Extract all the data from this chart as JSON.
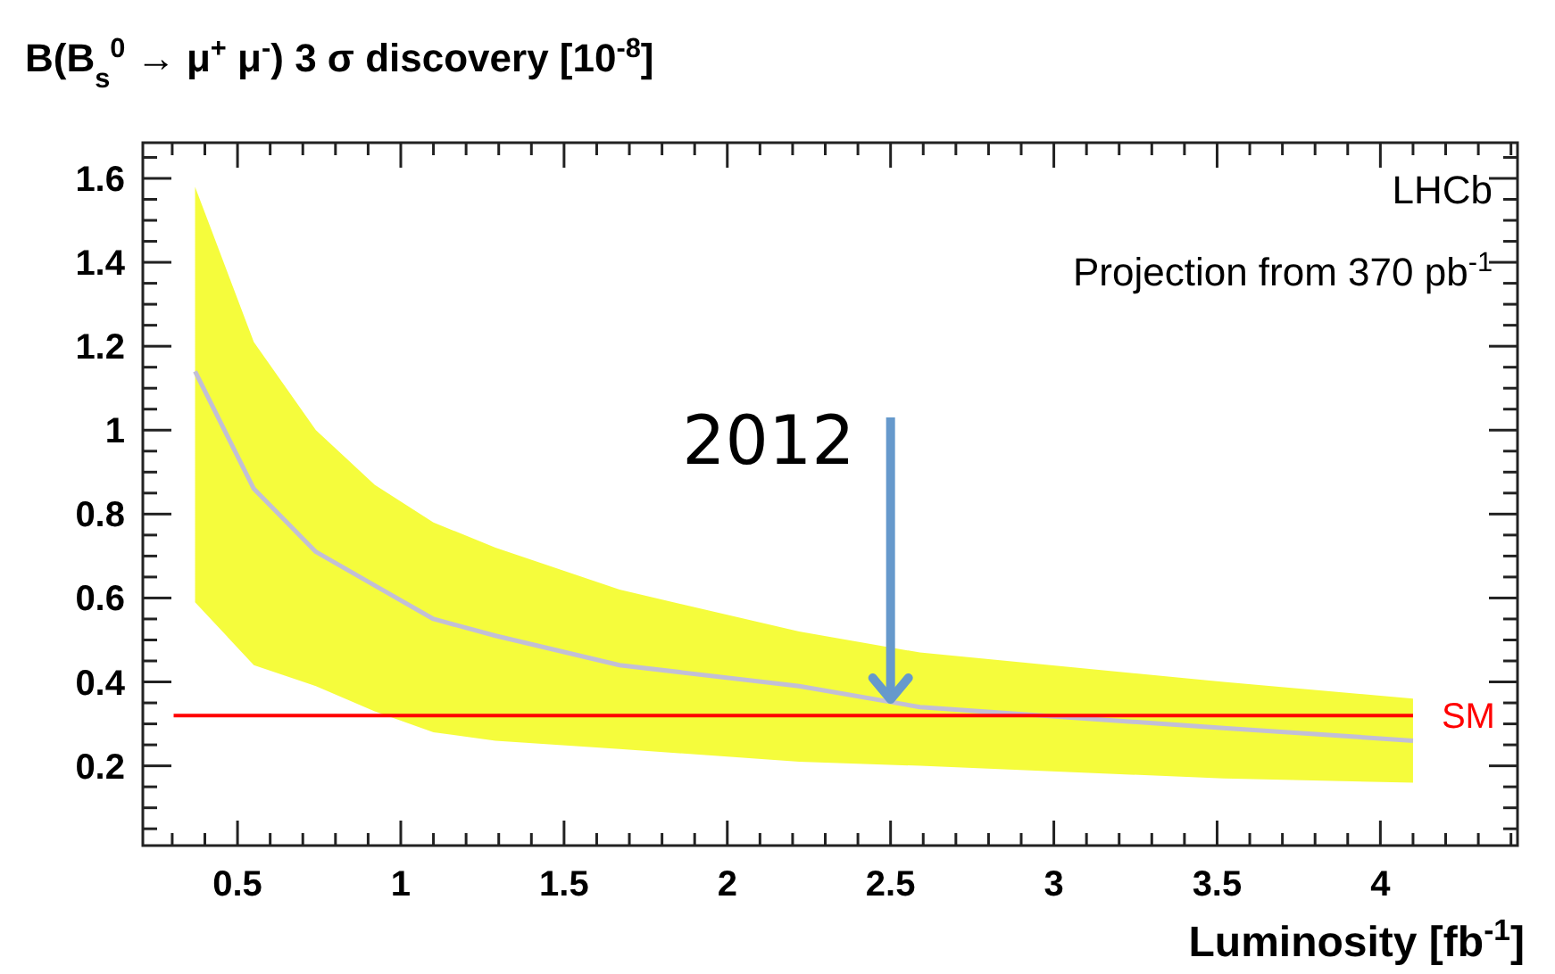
{
  "chart_data": {
    "type": "line",
    "title": "B(B$_{s}$$^{0}$ → μ$^{+}$ μ$^{-}$) 3 σ discovery [10$^{-8}$]",
    "xlabel": "Luminosity [fb$^{-1}$]",
    "x": [
      0.37,
      0.55,
      0.74,
      0.92,
      1.1,
      1.29,
      1.67,
      2.22,
      2.59,
      3.52,
      4.1
    ],
    "series": [
      {
        "color": "#c2bfd6",
        "colors": [
          "#f5fc3c",
          "#f5fc3c",
          "#f5fc3c",
          "#f5fc3c",
          "#f5fc3c",
          "#f5fc3c",
          "#f5fc3c",
          "#f5fc3c",
          "#f5fc3c",
          "#f5fc3c",
          "#f5fc3c"
        ],
        "values": [
          1.14,
          0.86,
          0.71,
          0.63,
          0.55,
          0.51,
          0.44,
          0.39,
          0.34,
          0.29,
          0.26
        ],
        "upper": [
          1.58,
          1.21,
          1.0,
          0.87,
          0.78,
          0.72,
          0.62,
          0.52,
          0.47,
          0.4,
          0.36
        ],
        "lower": [
          0.59,
          0.44,
          0.39,
          0.33,
          0.28,
          0.26,
          0.24,
          0.21,
          0.2,
          0.17,
          0.16
        ]
      }
    ],
    "ref_lines": [
      {
        "axis": "y",
        "value": 0.32,
        "label": "SM",
        "color": "#ff0000"
      }
    ],
    "annotations": [
      "LHCb",
      "Projection from 370 pb$^{-1}$",
      {
        "text": "2012",
        "x": 2.5,
        "y": 0.35
      }
    ],
    "xlim": [
      0.21,
      4.42
    ],
    "ylim": [
      0.01,
      1.685
    ],
    "xticks": [
      {
        "value": 0.3,
        "label": null
      },
      {
        "value": 0.4,
        "label": null
      },
      0.5,
      {
        "value": 0.6,
        "label": null
      },
      {
        "value": 0.7,
        "label": null
      },
      {
        "value": 0.8,
        "label": null
      },
      {
        "value": 0.9,
        "label": null
      },
      1,
      {
        "value": 1.1,
        "label": null
      },
      {
        "value": 1.2,
        "label": null
      },
      {
        "value": 1.3,
        "label": null
      },
      {
        "value": 1.4,
        "label": null
      },
      1.5,
      {
        "value": 1.6,
        "label": null
      },
      {
        "value": 1.7,
        "label": null
      },
      {
        "value": 1.8,
        "label": null
      },
      {
        "value": 1.9,
        "label": null
      },
      2,
      {
        "value": 2.1,
        "label": null
      },
      {
        "value": 2.2,
        "label": null
      },
      {
        "value": 2.3,
        "label": null
      },
      {
        "value": 2.4,
        "label": null
      },
      2.5,
      {
        "value": 2.6,
        "label": null
      },
      {
        "value": 2.7,
        "label": null
      },
      {
        "value": 2.8,
        "label": null
      },
      {
        "value": 2.9,
        "label": null
      },
      3,
      {
        "value": 3.1,
        "label": null
      },
      {
        "value": 3.2,
        "label": null
      },
      {
        "value": 3.3,
        "label": null
      },
      {
        "value": 3.4,
        "label": null
      },
      3.5,
      {
        "value": 3.6,
        "label": null
      },
      {
        "value": 3.7,
        "label": null
      },
      {
        "value": 3.8,
        "label": null
      },
      {
        "value": 3.9,
        "label": null
      },
      4,
      {
        "value": 4.1,
        "label": null
      },
      {
        "value": 4.2,
        "label": null
      },
      {
        "value": 4.3,
        "label": null
      },
      {
        "value": 4.4,
        "label": null
      }
    ],
    "yticks": [
      {
        "value": 0.05,
        "label": null
      },
      {
        "value": 0.1,
        "label": null
      },
      {
        "value": 0.15,
        "label": null
      },
      0.2,
      {
        "value": 0.25,
        "label": null
      },
      {
        "value": 0.3,
        "label": null
      },
      {
        "value": 0.35,
        "label": null
      },
      0.4,
      {
        "value": 0.45,
        "label": null
      },
      {
        "value": 0.5,
        "label": null
      },
      {
        "value": 0.55,
        "label": null
      },
      0.6,
      {
        "value": 0.65,
        "label": null
      },
      {
        "value": 0.7,
        "label": null
      },
      {
        "value": 0.75,
        "label": null
      },
      0.8,
      {
        "value": 0.85,
        "label": null
      },
      {
        "value": 0.9,
        "label": null
      },
      {
        "value": 0.95,
        "label": null
      },
      1,
      {
        "value": 1.05,
        "label": null
      },
      {
        "value": 1.1,
        "label": null
      },
      {
        "value": 1.15,
        "label": null
      },
      1.2,
      {
        "value": 1.25,
        "label": null
      },
      {
        "value": 1.3,
        "label": null
      },
      {
        "value": 1.35,
        "label": null
      },
      1.4,
      {
        "value": 1.45,
        "label": null
      },
      {
        "value": 1.5,
        "label": null
      },
      {
        "value": 1.55,
        "label": null
      },
      1.6,
      {
        "value": 1.65,
        "label": null
      }
    ]
  }
}
